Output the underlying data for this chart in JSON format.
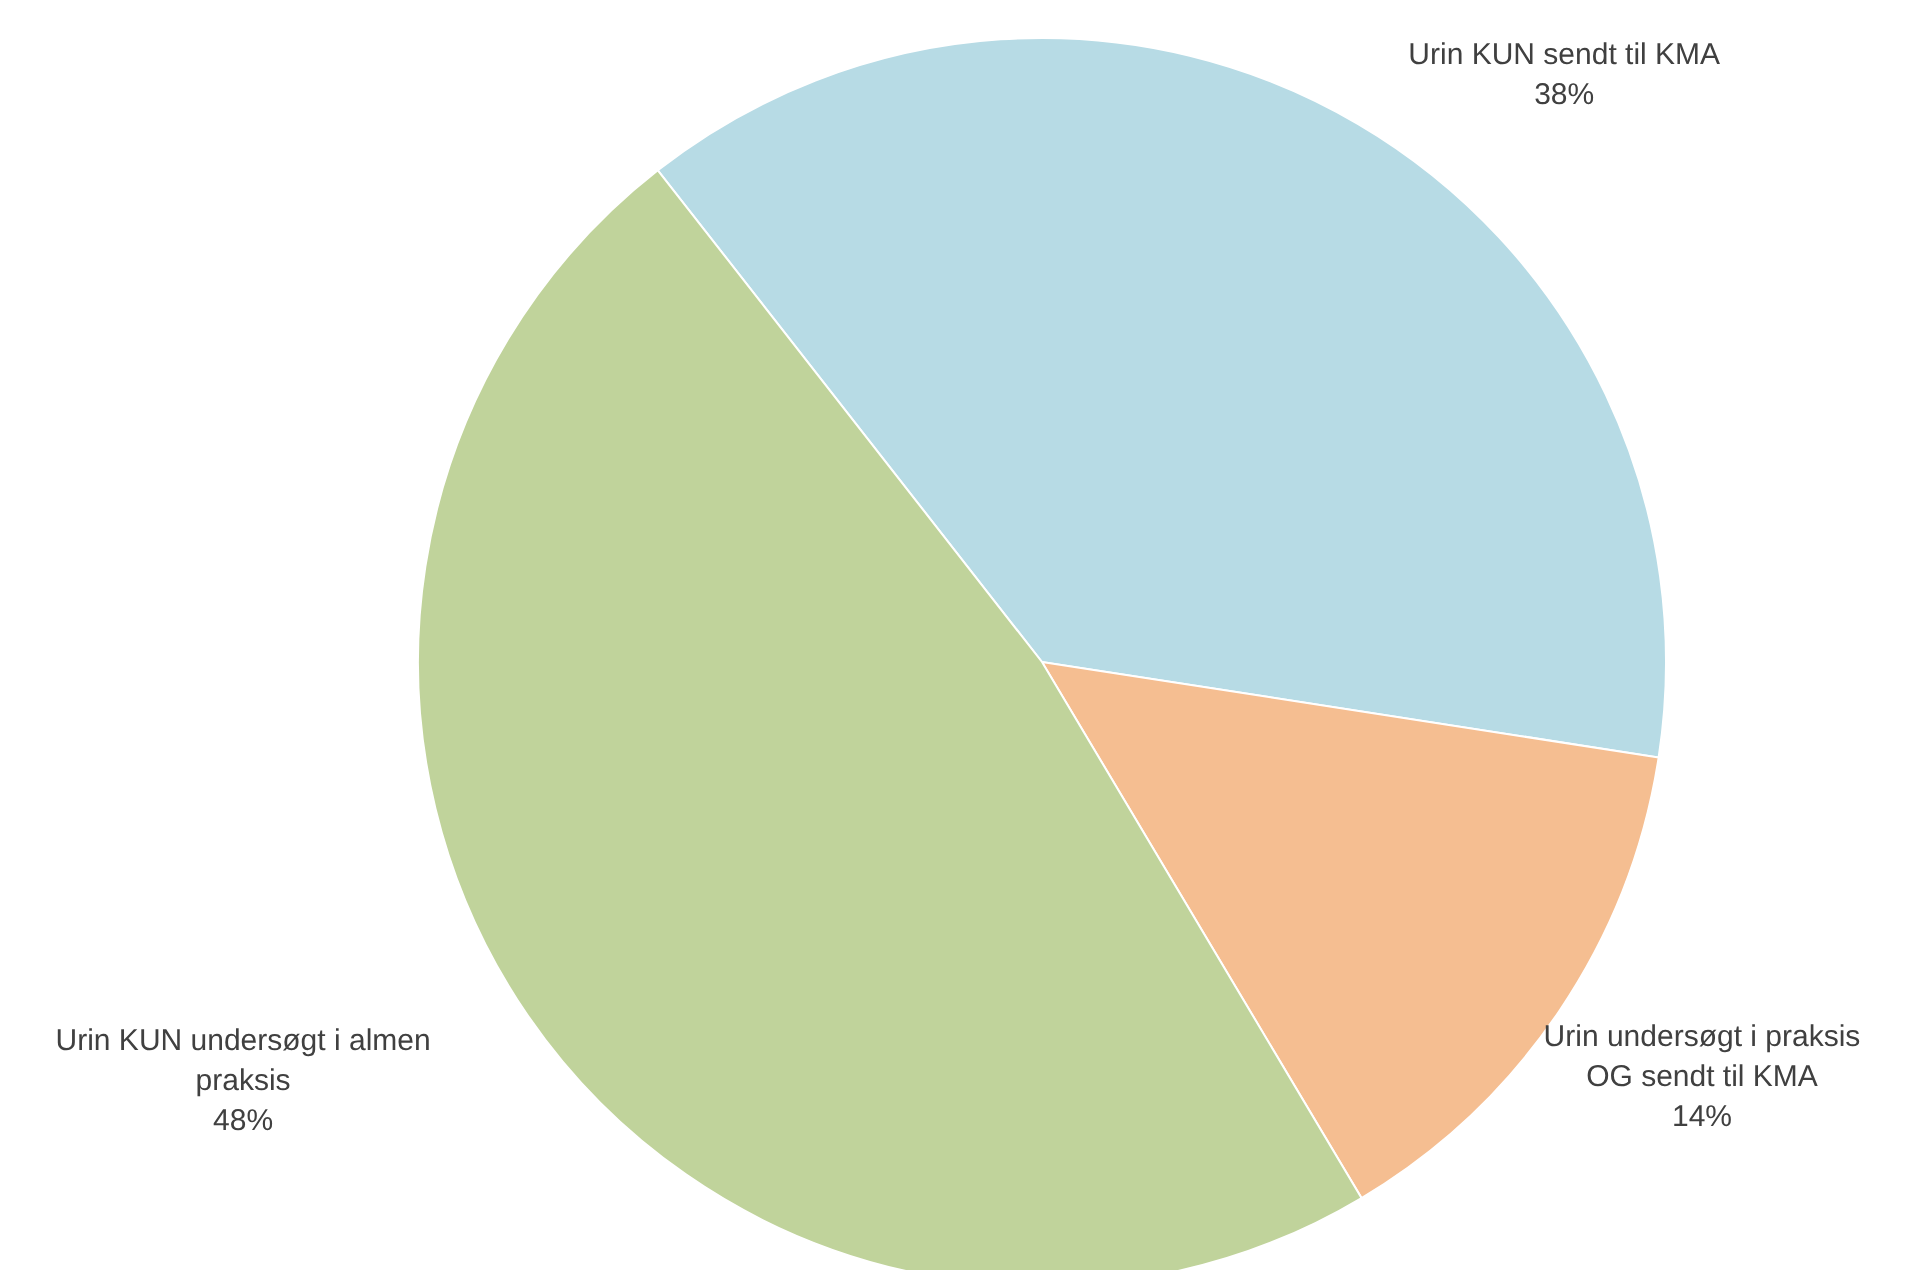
{
  "chart_data": {
    "type": "pie",
    "categories": [
      "Urin KUN sendt til KMA",
      "Urin undersøgt i praksis OG sendt til KMA",
      "Urin KUN undersøgt i almen praksis"
    ],
    "values": [
      38,
      14,
      48
    ],
    "value_labels": [
      "38%",
      "14%",
      "48%"
    ],
    "colors": [
      "#b7dbe5",
      "#f5be91",
      "#c0d39b"
    ]
  }
}
